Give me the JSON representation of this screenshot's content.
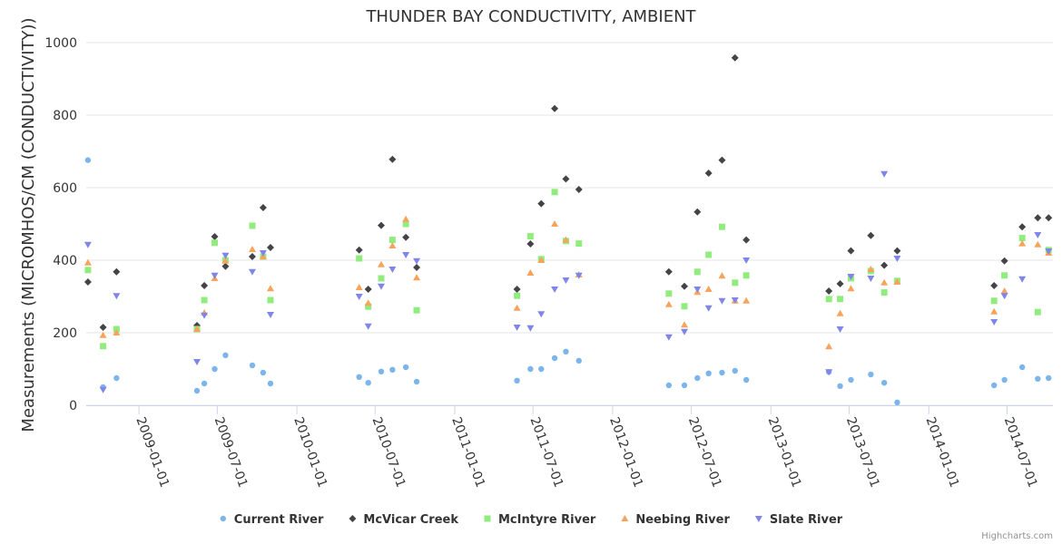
{
  "chart_data": {
    "type": "scatter",
    "title": "THUNDER BAY CONDUCTIVITY, AMBIENT",
    "ylabel": "Measurements (MICROMHOS/CM (CONDUCTIVITY))",
    "xlabel": "",
    "ylim": [
      0,
      1000
    ],
    "y_ticks": [
      "0",
      "200",
      "400",
      "600",
      "800",
      "1000"
    ],
    "x_range": [
      "2008-09-01",
      "2014-10-15"
    ],
    "x_ticks": [
      "2009-01-01",
      "2009-07-01",
      "2010-01-01",
      "2010-07-01",
      "2011-01-01",
      "2011-07-01",
      "2012-01-01",
      "2012-07-01",
      "2013-01-01",
      "2013-07-01",
      "2014-01-01",
      "2014-07-01"
    ],
    "grid": true,
    "legend_position": "bottom-center",
    "series": [
      {
        "name": "Current River",
        "color": "#7cb5ec",
        "symbol": "circle",
        "points": [
          [
            "2008-09-05",
            676
          ],
          [
            "2008-10-10",
            50
          ],
          [
            "2008-11-10",
            75
          ],
          [
            "2009-05-15",
            40
          ],
          [
            "2009-06-01",
            60
          ],
          [
            "2009-06-25",
            100
          ],
          [
            "2009-07-20",
            138
          ],
          [
            "2009-09-20",
            110
          ],
          [
            "2009-10-15",
            90
          ],
          [
            "2009-11-01",
            60
          ],
          [
            "2010-05-25",
            78
          ],
          [
            "2010-06-15",
            62
          ],
          [
            "2010-07-15",
            93
          ],
          [
            "2010-08-10",
            98
          ],
          [
            "2010-09-10",
            105
          ],
          [
            "2010-10-05",
            65
          ],
          [
            "2011-05-25",
            68
          ],
          [
            "2011-06-25",
            100
          ],
          [
            "2011-07-20",
            100
          ],
          [
            "2011-08-20",
            130
          ],
          [
            "2011-09-15",
            148
          ],
          [
            "2011-10-15",
            123
          ],
          [
            "2012-05-10",
            55
          ],
          [
            "2012-06-15",
            55
          ],
          [
            "2012-07-15",
            75
          ],
          [
            "2012-08-10",
            88
          ],
          [
            "2012-09-10",
            90
          ],
          [
            "2012-10-10",
            95
          ],
          [
            "2012-11-05",
            70
          ],
          [
            "2013-05-15",
            92
          ],
          [
            "2013-06-10",
            53
          ],
          [
            "2013-07-05",
            70
          ],
          [
            "2013-08-20",
            85
          ],
          [
            "2013-09-20",
            62
          ],
          [
            "2013-10-20",
            8
          ],
          [
            "2014-06-01",
            55
          ],
          [
            "2014-06-25",
            70
          ],
          [
            "2014-08-05",
            105
          ],
          [
            "2014-09-10",
            73
          ],
          [
            "2014-10-05",
            75
          ]
        ]
      },
      {
        "name": "McVicar Creek",
        "color": "#434348",
        "symbol": "diamond",
        "points": [
          [
            "2008-09-05",
            340
          ],
          [
            "2008-10-10",
            215
          ],
          [
            "2008-11-10",
            368
          ],
          [
            "2009-05-15",
            220
          ],
          [
            "2009-06-01",
            330
          ],
          [
            "2009-06-25",
            465
          ],
          [
            "2009-07-20",
            383
          ],
          [
            "2009-09-20",
            410
          ],
          [
            "2009-10-15",
            545
          ],
          [
            "2009-11-01",
            435
          ],
          [
            "2010-05-25",
            428
          ],
          [
            "2010-06-15",
            320
          ],
          [
            "2010-07-15",
            496
          ],
          [
            "2010-08-10",
            678
          ],
          [
            "2010-09-10",
            463
          ],
          [
            "2010-10-05",
            380
          ],
          [
            "2011-05-25",
            320
          ],
          [
            "2011-06-25",
            445
          ],
          [
            "2011-07-20",
            556
          ],
          [
            "2011-08-20",
            818
          ],
          [
            "2011-09-15",
            624
          ],
          [
            "2011-10-15",
            595
          ],
          [
            "2012-05-10",
            368
          ],
          [
            "2012-06-15",
            328
          ],
          [
            "2012-07-15",
            533
          ],
          [
            "2012-08-10",
            640
          ],
          [
            "2012-09-10",
            676
          ],
          [
            "2012-10-10",
            958
          ],
          [
            "2012-11-05",
            456
          ],
          [
            "2013-05-15",
            315
          ],
          [
            "2013-06-10",
            335
          ],
          [
            "2013-07-05",
            426
          ],
          [
            "2013-08-20",
            468
          ],
          [
            "2013-09-20",
            386
          ],
          [
            "2013-10-20",
            426
          ],
          [
            "2014-06-01",
            330
          ],
          [
            "2014-06-25",
            398
          ],
          [
            "2014-08-05",
            492
          ],
          [
            "2014-09-10",
            517
          ],
          [
            "2014-10-05",
            517
          ]
        ]
      },
      {
        "name": "McIntyre River",
        "color": "#90ed7d",
        "symbol": "square",
        "points": [
          [
            "2008-09-05",
            373
          ],
          [
            "2008-10-10",
            163
          ],
          [
            "2008-11-10",
            210
          ],
          [
            "2009-05-15",
            210
          ],
          [
            "2009-06-01",
            290
          ],
          [
            "2009-06-25",
            448
          ],
          [
            "2009-07-20",
            400
          ],
          [
            "2009-09-20",
            495
          ],
          [
            "2009-10-15",
            410
          ],
          [
            "2009-11-01",
            290
          ],
          [
            "2010-05-25",
            405
          ],
          [
            "2010-06-15",
            272
          ],
          [
            "2010-07-15",
            350
          ],
          [
            "2010-08-10",
            456
          ],
          [
            "2010-09-10",
            500
          ],
          [
            "2010-10-05",
            262
          ],
          [
            "2011-05-25",
            302
          ],
          [
            "2011-06-25",
            466
          ],
          [
            "2011-07-20",
            403
          ],
          [
            "2011-08-20",
            588
          ],
          [
            "2011-09-15",
            453
          ],
          [
            "2011-10-15",
            446
          ],
          [
            "2012-05-10",
            308
          ],
          [
            "2012-06-15",
            273
          ],
          [
            "2012-07-15",
            368
          ],
          [
            "2012-08-10",
            415
          ],
          [
            "2012-09-10",
            492
          ],
          [
            "2012-10-10",
            338
          ],
          [
            "2012-11-05",
            358
          ],
          [
            "2013-05-15",
            293
          ],
          [
            "2013-06-10",
            293
          ],
          [
            "2013-07-05",
            350
          ],
          [
            "2013-08-20",
            370
          ],
          [
            "2013-09-20",
            311
          ],
          [
            "2013-10-20",
            343
          ],
          [
            "2014-06-01",
            288
          ],
          [
            "2014-06-25",
            358
          ],
          [
            "2014-08-05",
            461
          ],
          [
            "2014-09-10",
            257
          ],
          [
            "2014-10-05",
            428
          ]
        ]
      },
      {
        "name": "Neebing River",
        "color": "#f7a35c",
        "symbol": "triangle",
        "points": [
          [
            "2008-09-05",
            393
          ],
          [
            "2008-10-10",
            193
          ],
          [
            "2008-11-10",
            200
          ],
          [
            "2009-05-15",
            210
          ],
          [
            "2009-06-01",
            255
          ],
          [
            "2009-06-25",
            350
          ],
          [
            "2009-07-20",
            398
          ],
          [
            "2009-09-20",
            430
          ],
          [
            "2009-10-15",
            410
          ],
          [
            "2009-11-01",
            322
          ],
          [
            "2010-05-25",
            325
          ],
          [
            "2010-06-15",
            282
          ],
          [
            "2010-07-15",
            388
          ],
          [
            "2010-08-10",
            440
          ],
          [
            "2010-09-10",
            513
          ],
          [
            "2010-10-05",
            352
          ],
          [
            "2011-05-25",
            268
          ],
          [
            "2011-06-25",
            365
          ],
          [
            "2011-07-20",
            400
          ],
          [
            "2011-08-20",
            500
          ],
          [
            "2011-09-15",
            456
          ],
          [
            "2011-10-15",
            360
          ],
          [
            "2012-05-10",
            278
          ],
          [
            "2012-06-15",
            222
          ],
          [
            "2012-07-15",
            312
          ],
          [
            "2012-08-10",
            320
          ],
          [
            "2012-09-10",
            357
          ],
          [
            "2012-10-10",
            288
          ],
          [
            "2012-11-05",
            288
          ],
          [
            "2013-05-15",
            162
          ],
          [
            "2013-06-10",
            253
          ],
          [
            "2013-07-05",
            322
          ],
          [
            "2013-08-20",
            375
          ],
          [
            "2013-09-20",
            338
          ],
          [
            "2013-10-20",
            340
          ],
          [
            "2014-06-01",
            258
          ],
          [
            "2014-06-25",
            315
          ],
          [
            "2014-08-05",
            446
          ],
          [
            "2014-09-10",
            443
          ],
          [
            "2014-10-05",
            420
          ]
        ]
      },
      {
        "name": "Slate River",
        "color": "#8085e9",
        "symbol": "triangle-down",
        "points": [
          [
            "2008-09-05",
            443
          ],
          [
            "2008-10-10",
            43
          ],
          [
            "2008-11-10",
            302
          ],
          [
            "2009-05-15",
            120
          ],
          [
            "2009-06-01",
            248
          ],
          [
            "2009-06-25",
            358
          ],
          [
            "2009-07-20",
            413
          ],
          [
            "2009-09-20",
            368
          ],
          [
            "2009-10-15",
            420
          ],
          [
            "2009-11-01",
            250
          ],
          [
            "2010-05-25",
            300
          ],
          [
            "2010-06-15",
            218
          ],
          [
            "2010-07-15",
            328
          ],
          [
            "2010-08-10",
            375
          ],
          [
            "2010-09-10",
            415
          ],
          [
            "2010-10-05",
            398
          ],
          [
            "2011-05-25",
            215
          ],
          [
            "2011-06-25",
            213
          ],
          [
            "2011-07-20",
            252
          ],
          [
            "2011-08-20",
            320
          ],
          [
            "2011-09-15",
            345
          ],
          [
            "2011-10-15",
            358
          ],
          [
            "2012-05-10",
            188
          ],
          [
            "2012-06-15",
            203
          ],
          [
            "2012-07-15",
            320
          ],
          [
            "2012-08-10",
            268
          ],
          [
            "2012-09-10",
            288
          ],
          [
            "2012-10-10",
            290
          ],
          [
            "2012-11-05",
            400
          ],
          [
            "2013-05-15",
            92
          ],
          [
            "2013-06-10",
            210
          ],
          [
            "2013-07-05",
            355
          ],
          [
            "2013-08-20",
            350
          ],
          [
            "2013-09-20",
            638
          ],
          [
            "2013-10-20",
            405
          ],
          [
            "2014-06-01",
            230
          ],
          [
            "2014-06-25",
            302
          ],
          [
            "2014-08-05",
            348
          ],
          [
            "2014-09-10",
            470
          ],
          [
            "2014-10-05",
            425
          ]
        ]
      }
    ],
    "credits": "Highcharts.com"
  }
}
